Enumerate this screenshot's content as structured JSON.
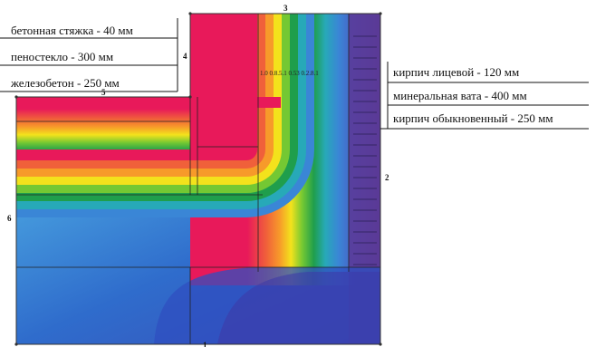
{
  "layers_left": [
    {
      "text": "бетонная стяжка - 40 мм"
    },
    {
      "text": "пеностекло - 300 мм"
    },
    {
      "text": "железобетон - 250 мм"
    }
  ],
  "layers_right": [
    {
      "text": "кирпич лицевой - 120 мм"
    },
    {
      "text": "минеральная вата - 400 мм"
    },
    {
      "text": "кирпич обыкновенный - 250 мм"
    }
  ],
  "boundary_numbers": [
    "1",
    "2",
    "3",
    "4",
    "5",
    "6"
  ],
  "isoline_label": "1.0 0.8.5.1 0.53 0.2.8.1",
  "colors": {
    "hot": "#e8195a",
    "cold_deep": "#5a3a96",
    "cold_mid": "#2c5cc8",
    "cold_light": "#48a6e0"
  }
}
